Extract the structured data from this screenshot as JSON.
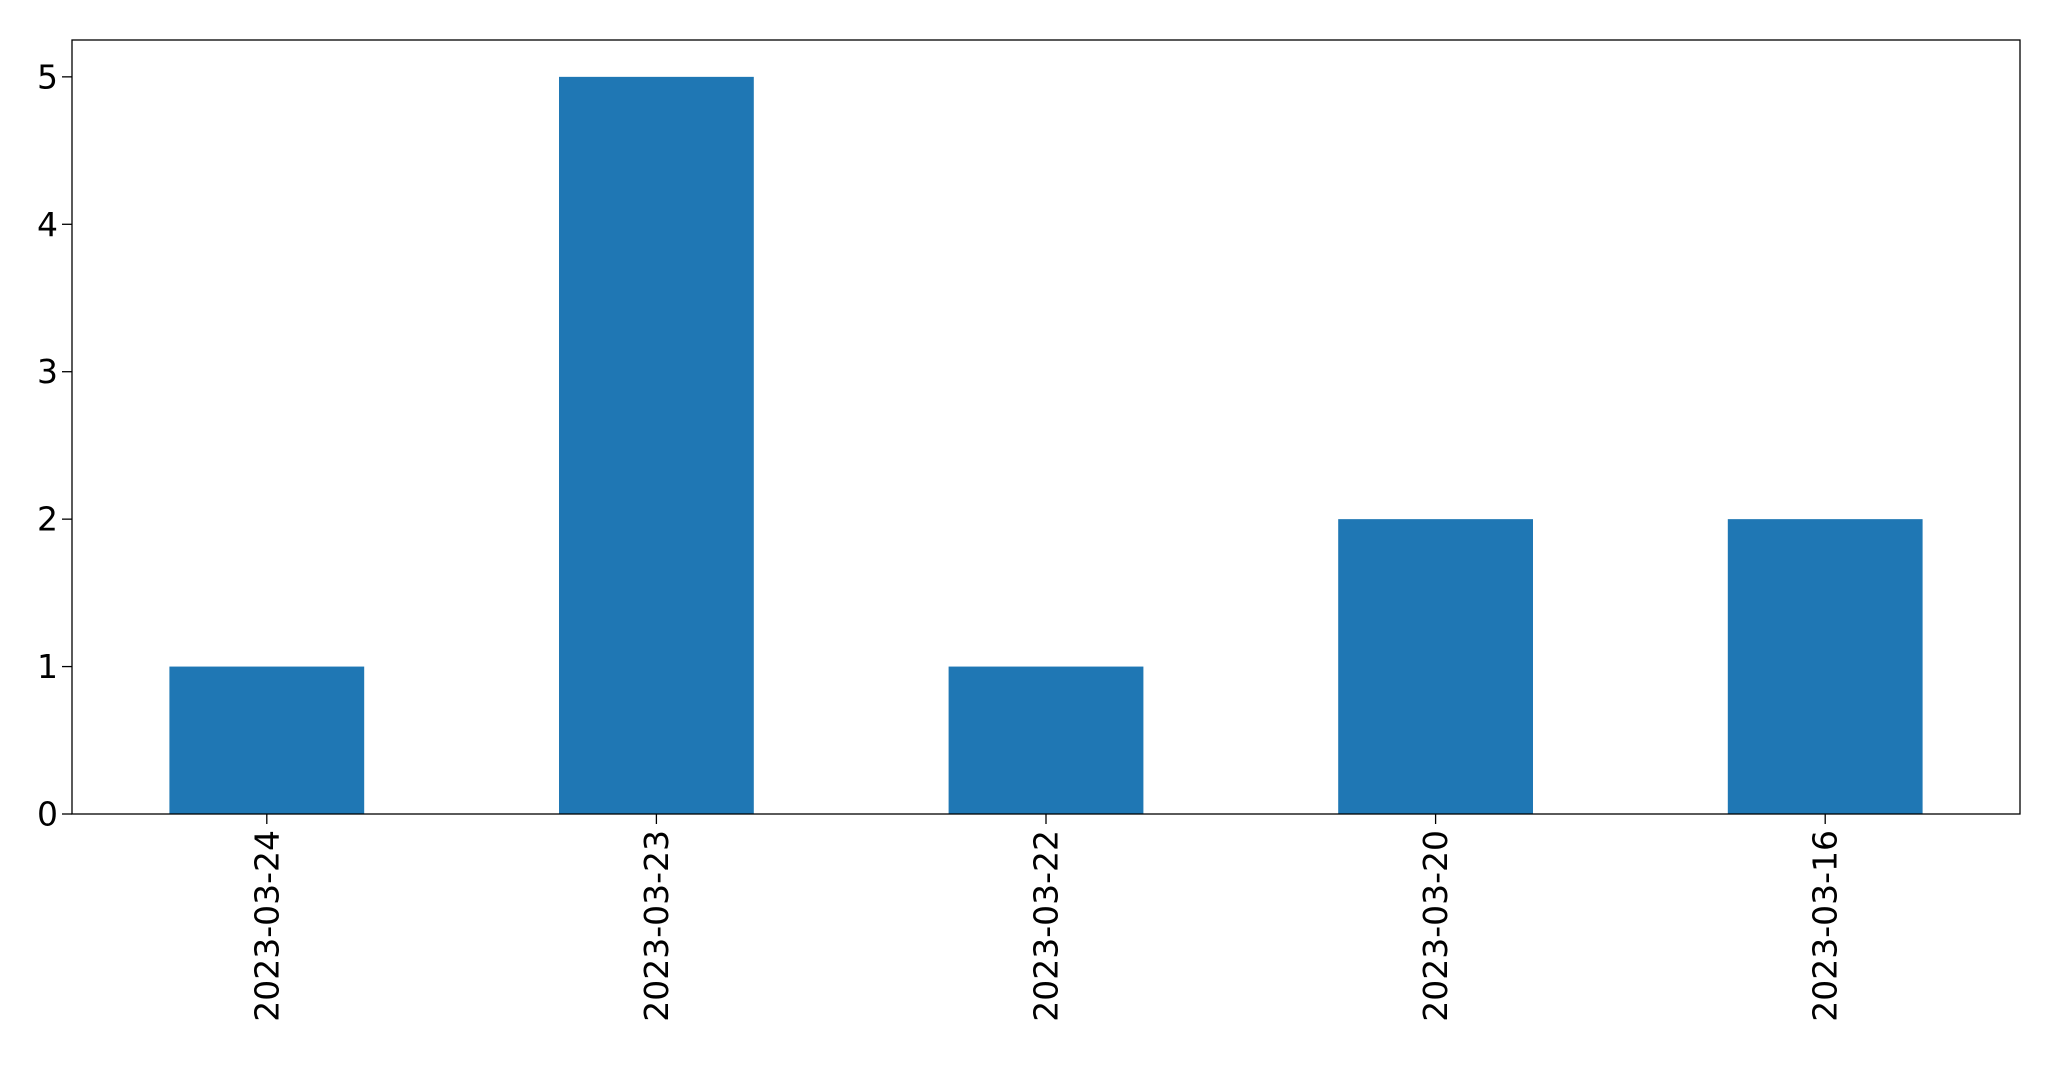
{
  "chart_data": {
    "type": "bar",
    "categories": [
      "2023-03-24",
      "2023-03-23",
      "2023-03-22",
      "2023-03-20",
      "2023-03-16"
    ],
    "values": [
      1,
      5,
      1,
      2,
      2
    ],
    "title": "",
    "xlabel": "",
    "ylabel": "",
    "ylim": [
      0,
      5.25
    ],
    "yticks": [
      0,
      1,
      2,
      3,
      4,
      5
    ],
    "bar_color": "#1f77b4",
    "grid": false,
    "legend": "none"
  }
}
